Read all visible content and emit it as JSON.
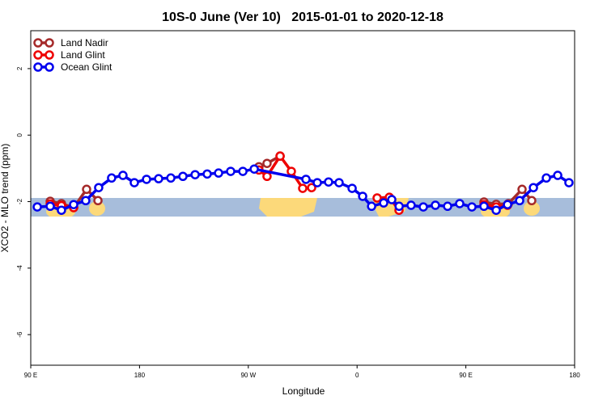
{
  "chart_data": {
    "type": "line",
    "title": "10S-0 June (Ver 10)   2015-01-01 to 2020-12-18",
    "x_label": "Longitude",
    "y_label": "XCO2 - MLO trend (ppm)",
    "xlim": [
      90,
      540
    ],
    "xticks": [
      {
        "value": 90,
        "label": "90 E"
      },
      {
        "value": 180,
        "label": "180"
      },
      {
        "value": 270,
        "label": "90 W"
      },
      {
        "value": 360,
        "label": "0"
      },
      {
        "value": 450,
        "label": "90 E"
      },
      {
        "value": 540,
        "label": "180"
      }
    ],
    "ylim": [
      -6.92,
      3.14
    ],
    "yticks": [
      2,
      0,
      -2,
      -4,
      -6
    ],
    "legend": "top-left",
    "series": [
      {
        "name": "Land Nadir",
        "color": "#a52a2a",
        "x": [
          106.1,
          115.4,
          125.5,
          136.2,
          145.6,
          null,
          278.8,
          285.5,
          296.3,
          null,
          465,
          475.1,
          485.2,
          496.5,
          504.5
        ],
        "values": [
          -1.99,
          -2.06,
          -2.18,
          -1.63,
          -1.97,
          null,
          -0.95,
          -0.85,
          -0.63,
          null,
          -2.01,
          -2.08,
          -2.06,
          -1.63,
          -1.97
        ]
      },
      {
        "name": "Land Glint",
        "color": "#ee0000",
        "x": [
          106.1,
          115.4,
          125.5,
          null,
          278.8,
          285.5,
          296.3,
          305.6,
          315,
          322.4,
          null,
          376.6,
          386.7,
          394.7,
          null,
          465,
          475.1,
          484.5
        ],
        "values": [
          -2.07,
          -2.12,
          -2.18,
          null,
          -1.05,
          -1.24,
          -0.63,
          -1.09,
          -1.6,
          -1.58,
          null,
          -1.89,
          -1.87,
          -2.26,
          null,
          -2.09,
          -2.16,
          -2.11
        ]
      },
      {
        "name": "Ocean Glint",
        "color": "#0000ee",
        "x": [
          95.4,
          106.1,
          115.4,
          125.5,
          135.5,
          146.2,
          156.9,
          166.3,
          175.7,
          185.8,
          195.8,
          205.9,
          215.9,
          226,
          236,
          245.4,
          255.4,
          265.5,
          274.9,
          317.7,
          327.1,
          336.4,
          345.1,
          355.9,
          364.6,
          372,
          382,
          388.7,
          394.8,
          404.7,
          414.8,
          424.8,
          434.9,
          444.9,
          455,
          465,
          475.1,
          484.5,
          494.5,
          505.9,
          516.6,
          526,
          535.3
        ],
        "values": [
          -2.16,
          -2.14,
          -2.26,
          -2.09,
          -1.97,
          -1.58,
          -1.29,
          -1.21,
          -1.43,
          -1.33,
          -1.31,
          -1.29,
          -1.24,
          -1.19,
          -1.17,
          -1.14,
          -1.09,
          -1.09,
          -1.02,
          -1.33,
          -1.43,
          -1.41,
          -1.43,
          -1.6,
          -1.84,
          -2.14,
          -2.04,
          -1.94,
          -2.14,
          -2.11,
          -2.16,
          -2.11,
          -2.14,
          -2.06,
          -2.16,
          -2.14,
          -2.26,
          -2.09,
          -1.97,
          -1.58,
          -1.29,
          -1.21,
          -1.43
        ]
      }
    ]
  }
}
